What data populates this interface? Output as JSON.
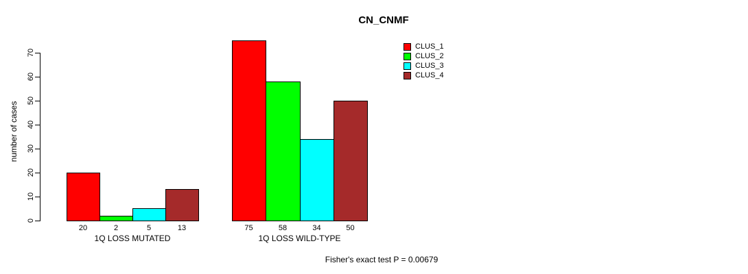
{
  "title": "CN_CNMF",
  "ylabel": "number of cases",
  "footer": "Fisher's exact test P = 0.00679",
  "chart_data": {
    "type": "bar",
    "title": "CN_CNMF",
    "xlabel": "",
    "ylabel": "number of cases",
    "categories": [
      "1Q LOSS MUTATED",
      "1Q LOSS WILD-TYPE"
    ],
    "series": [
      {
        "name": "CLUS_1",
        "color": "#ff0000",
        "values": [
          20,
          75
        ]
      },
      {
        "name": "CLUS_2",
        "color": "#00ff00",
        "values": [
          2,
          58
        ]
      },
      {
        "name": "CLUS_3",
        "color": "#00ffff",
        "values": [
          5,
          34
        ]
      },
      {
        "name": "CLUS_4",
        "color": "#a52a2a",
        "values": [
          13,
          50
        ]
      }
    ],
    "bar_value_labels": [
      [
        "20",
        "2",
        "5",
        "13"
      ],
      [
        "75",
        "58",
        "34",
        "50"
      ]
    ],
    "ylim": [
      0,
      70
    ],
    "y_ticks": [
      0,
      10,
      20,
      30,
      40,
      50,
      60,
      70
    ],
    "grid": false,
    "legend_position": "top-right",
    "annotation": "Fisher's exact test P = 0.00679"
  }
}
